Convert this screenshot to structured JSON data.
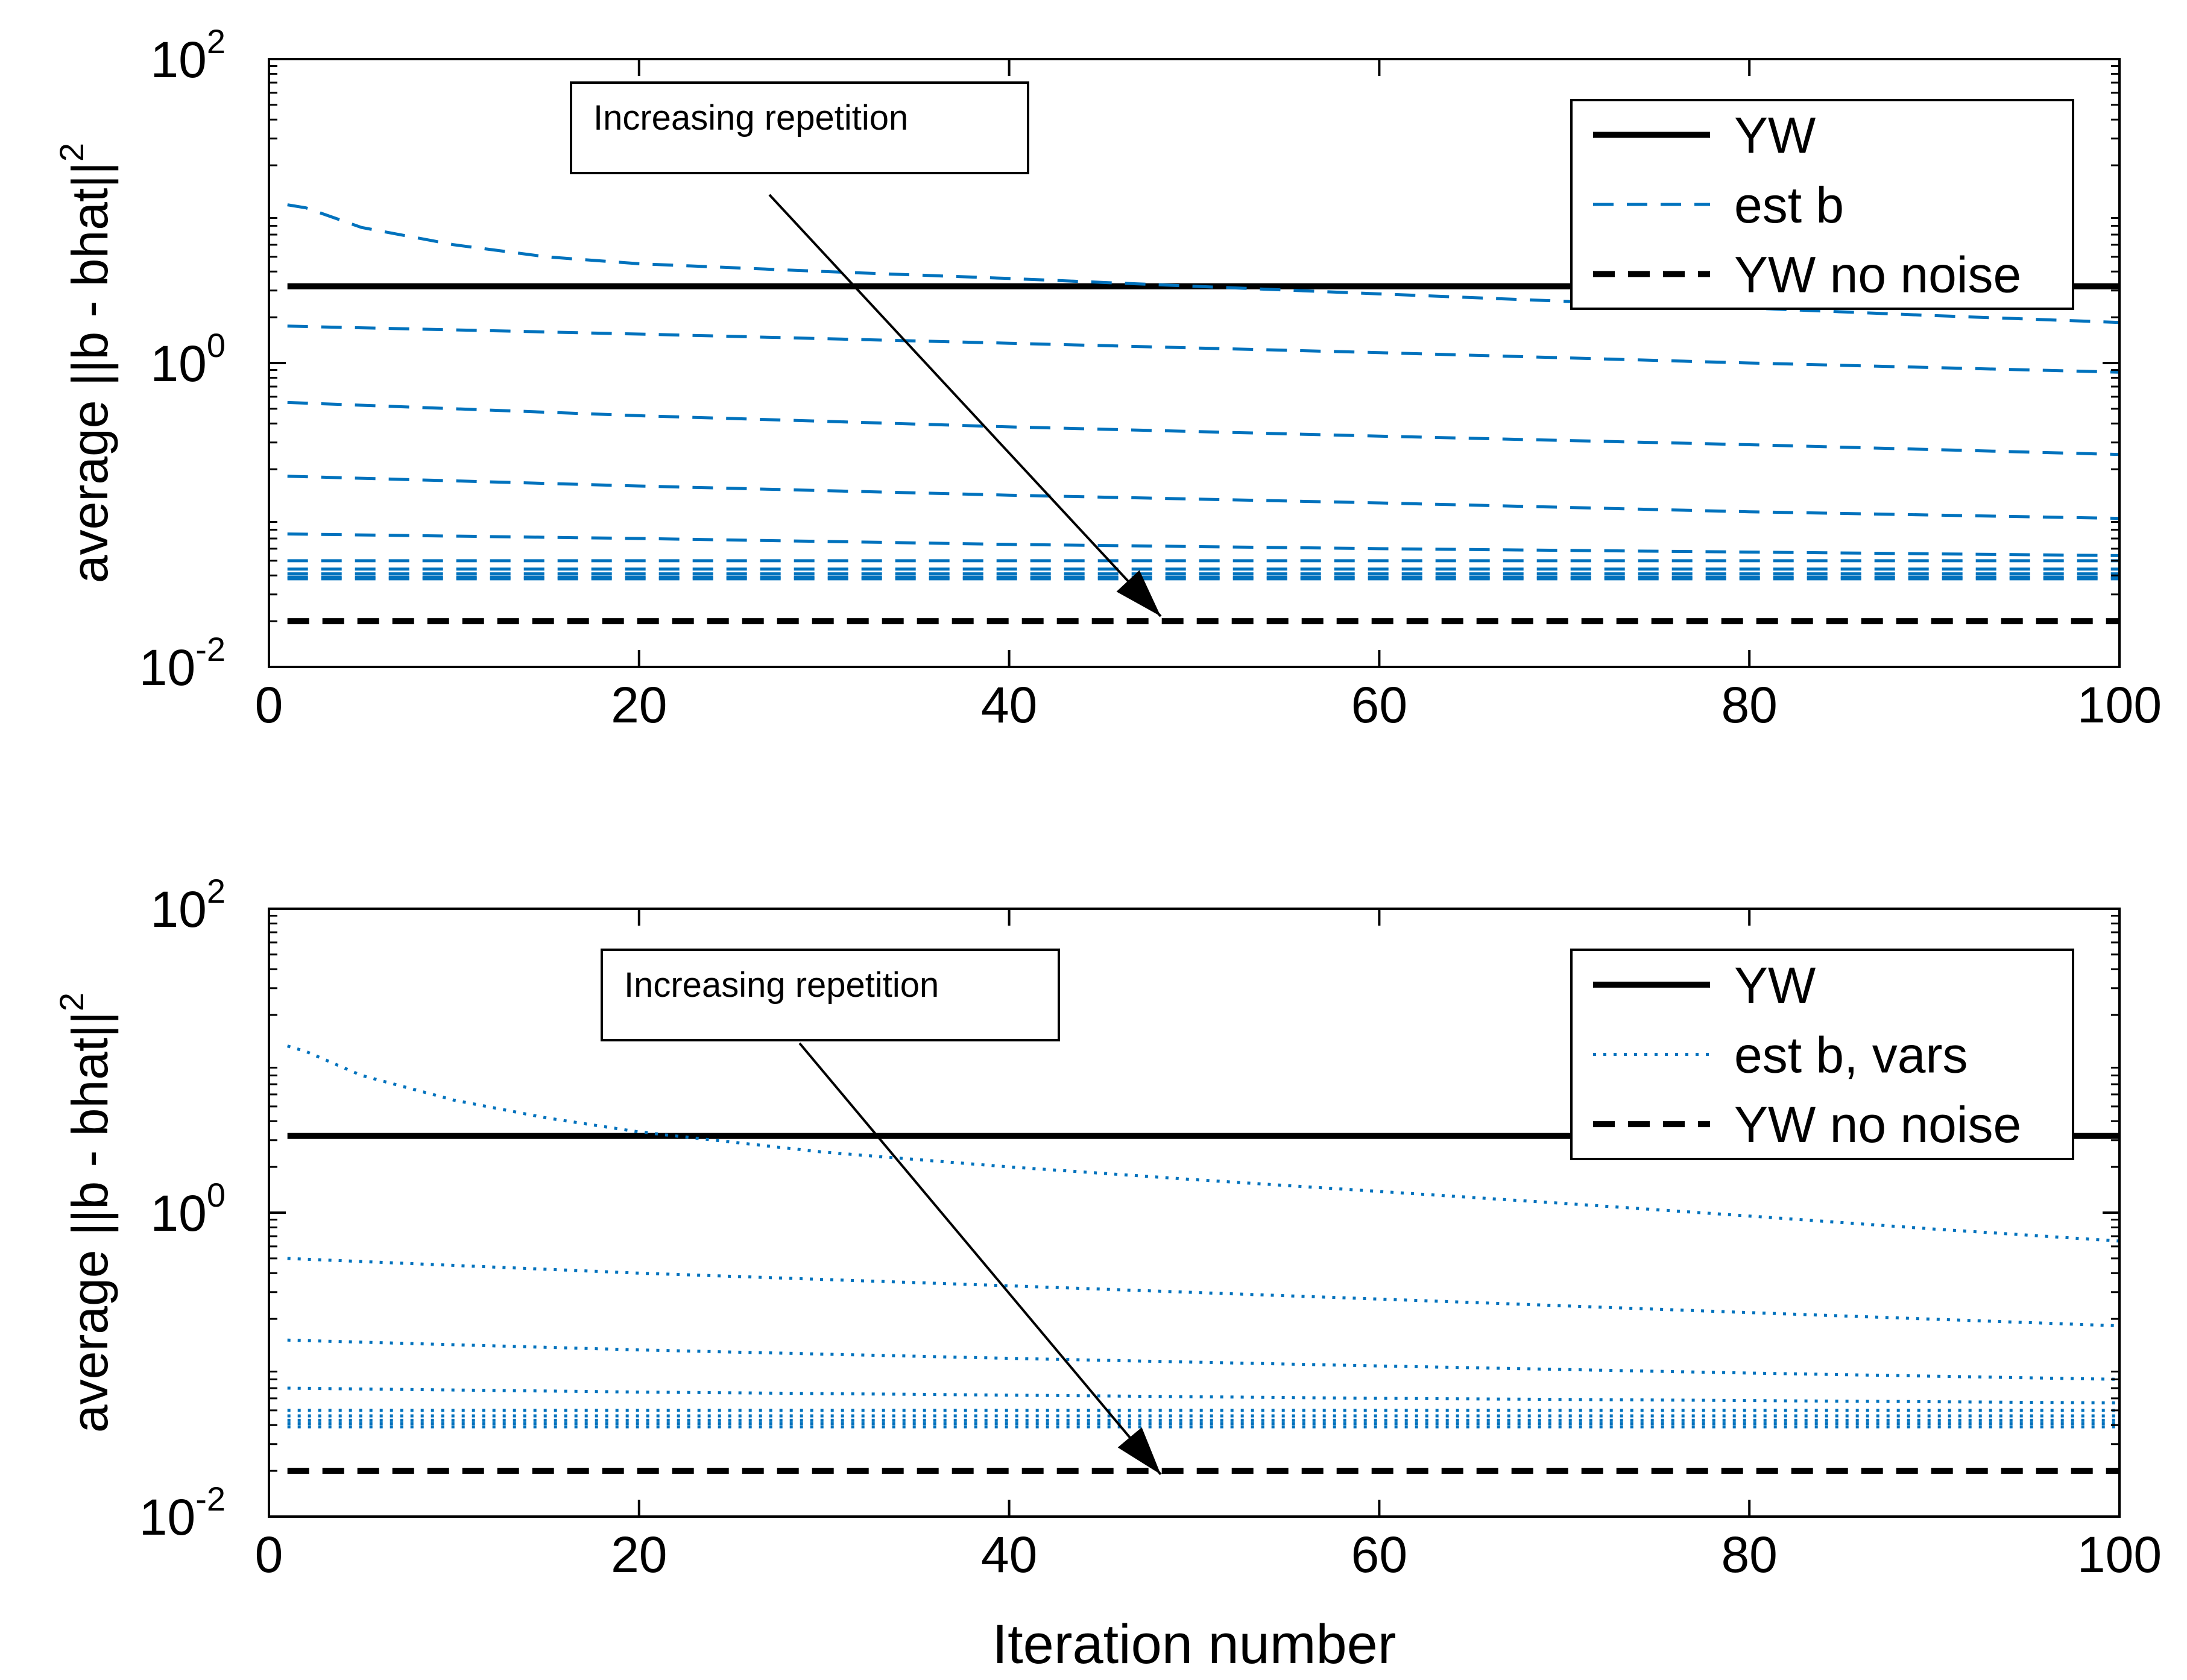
{
  "chart_data": [
    {
      "type": "line",
      "panel": "top",
      "ylabel": "average ||b - bhat||",
      "ylabel_exponent": "2",
      "xlabel": "",
      "xlim": [
        0,
        100
      ],
      "ylim": [
        0.01,
        100
      ],
      "yscale": "log",
      "x_ticks": [
        "0",
        "20",
        "40",
        "60",
        "80",
        "100"
      ],
      "y_ticks": [
        {
          "base": "10",
          "exp": "2"
        },
        {
          "base": "10",
          "exp": "0"
        },
        {
          "base": "10",
          "exp": "-2"
        }
      ],
      "legend": {
        "placement": "top-right",
        "entries": [
          "YW",
          "est b",
          "YW no noise"
        ]
      },
      "annotation": "Increasing repetition",
      "series": [
        {
          "name": "YW",
          "style": "solid",
          "color": "#000000",
          "x": [
            1,
            100
          ],
          "y": [
            3.2,
            3.2
          ]
        },
        {
          "name": "YW no noise",
          "style": "dashed-black",
          "color": "#000000",
          "x": [
            1,
            100
          ],
          "y": [
            0.02,
            0.02
          ]
        },
        {
          "name": "est b",
          "style": "dashed",
          "color": "#0072BD",
          "x": [
            1,
            2,
            5,
            10,
            15,
            20,
            30,
            40,
            50,
            60,
            70,
            80,
            90,
            100
          ],
          "y": [
            11.0,
            10.5,
            7.8,
            6.0,
            5.0,
            4.5,
            4.0,
            3.6,
            3.2,
            2.85,
            2.55,
            2.3,
            2.05,
            1.85
          ]
        },
        {
          "name": "est b",
          "style": "dashed",
          "color": "#0072BD",
          "x": [
            1,
            20,
            40,
            60,
            80,
            100
          ],
          "y": [
            1.75,
            1.55,
            1.35,
            1.17,
            1.0,
            0.87
          ]
        },
        {
          "name": "est b",
          "style": "dashed",
          "color": "#0072BD",
          "x": [
            1,
            20,
            40,
            60,
            80,
            100
          ],
          "y": [
            0.55,
            0.45,
            0.38,
            0.33,
            0.29,
            0.25
          ]
        },
        {
          "name": "est b",
          "style": "dashed",
          "color": "#0072BD",
          "x": [
            1,
            20,
            40,
            60,
            80,
            100
          ],
          "y": [
            0.18,
            0.155,
            0.135,
            0.12,
            0.105,
            0.095
          ]
        },
        {
          "name": "est b",
          "style": "dashed",
          "color": "#0072BD",
          "x": [
            1,
            20,
            40,
            60,
            80,
            100
          ],
          "y": [
            0.075,
            0.07,
            0.064,
            0.06,
            0.057,
            0.054
          ]
        },
        {
          "name": "est b",
          "style": "dashed",
          "color": "#0072BD",
          "x": [
            1,
            100
          ],
          "y": [
            0.05,
            0.05
          ]
        },
        {
          "name": "est b",
          "style": "dashed",
          "color": "#0072BD",
          "x": [
            1,
            100
          ],
          "y": [
            0.044,
            0.044
          ]
        },
        {
          "name": "est b",
          "style": "dashed",
          "color": "#0072BD",
          "x": [
            1,
            100
          ],
          "y": [
            0.041,
            0.041
          ]
        },
        {
          "name": "est b",
          "style": "dashed",
          "color": "#0072BD",
          "x": [
            1,
            100
          ],
          "y": [
            0.039,
            0.039
          ]
        },
        {
          "name": "est b",
          "style": "dashed",
          "color": "#0072BD",
          "x": [
            1,
            100
          ],
          "y": [
            0.038,
            0.038
          ]
        }
      ]
    },
    {
      "type": "line",
      "panel": "bottom",
      "ylabel": "average ||b - bhat||",
      "ylabel_exponent": "2",
      "xlabel": "Iteration number",
      "xlim": [
        0,
        100
      ],
      "ylim": [
        0.01,
        100
      ],
      "yscale": "log",
      "x_ticks": [
        "0",
        "20",
        "40",
        "60",
        "80",
        "100"
      ],
      "y_ticks": [
        {
          "base": "10",
          "exp": "2"
        },
        {
          "base": "10",
          "exp": "0"
        },
        {
          "base": "10",
          "exp": "-2"
        }
      ],
      "legend": {
        "placement": "top-right",
        "entries": [
          "YW",
          "est b, vars",
          "YW no noise"
        ]
      },
      "annotation": "Increasing repetition",
      "series": [
        {
          "name": "YW",
          "style": "solid",
          "color": "#000000",
          "x": [
            1,
            100
          ],
          "y": [
            3.2,
            3.2
          ]
        },
        {
          "name": "YW no noise",
          "style": "dashed-black",
          "color": "#000000",
          "x": [
            1,
            100
          ],
          "y": [
            0.02,
            0.02
          ]
        },
        {
          "name": "est b, vars",
          "style": "dotted",
          "color": "#0072BD",
          "x": [
            1,
            2,
            5,
            10,
            15,
            20,
            30,
            40,
            50,
            60,
            70,
            80,
            90,
            100
          ],
          "y": [
            12.5,
            11.5,
            8.0,
            5.5,
            4.2,
            3.4,
            2.5,
            2.0,
            1.65,
            1.38,
            1.15,
            0.95,
            0.78,
            0.65
          ]
        },
        {
          "name": "est b, vars",
          "style": "dotted",
          "color": "#0072BD",
          "x": [
            1,
            20,
            40,
            60,
            80,
            100
          ],
          "y": [
            0.5,
            0.4,
            0.33,
            0.27,
            0.22,
            0.18
          ]
        },
        {
          "name": "est b, vars",
          "style": "dotted",
          "color": "#0072BD",
          "x": [
            1,
            20,
            40,
            60,
            80,
            100
          ],
          "y": [
            0.145,
            0.125,
            0.11,
            0.098,
            0.088,
            0.08
          ]
        },
        {
          "name": "est b, vars",
          "style": "dotted",
          "color": "#0072BD",
          "x": [
            1,
            20,
            40,
            60,
            80,
            100
          ],
          "y": [
            0.07,
            0.066,
            0.063,
            0.06,
            0.058,
            0.056
          ]
        },
        {
          "name": "est b, vars",
          "style": "dotted",
          "color": "#0072BD",
          "x": [
            1,
            100
          ],
          "y": [
            0.05,
            0.05
          ]
        },
        {
          "name": "est b, vars",
          "style": "dotted",
          "color": "#0072BD",
          "x": [
            1,
            100
          ],
          "y": [
            0.046,
            0.046
          ]
        },
        {
          "name": "est b, vars",
          "style": "dotted",
          "color": "#0072BD",
          "x": [
            1,
            100
          ],
          "y": [
            0.043,
            0.043
          ]
        },
        {
          "name": "est b, vars",
          "style": "dotted",
          "color": "#0072BD",
          "x": [
            1,
            100
          ],
          "y": [
            0.041,
            0.041
          ]
        },
        {
          "name": "est b, vars",
          "style": "dotted",
          "color": "#0072BD",
          "x": [
            1,
            100
          ],
          "y": [
            0.039,
            0.039
          ]
        }
      ]
    }
  ]
}
